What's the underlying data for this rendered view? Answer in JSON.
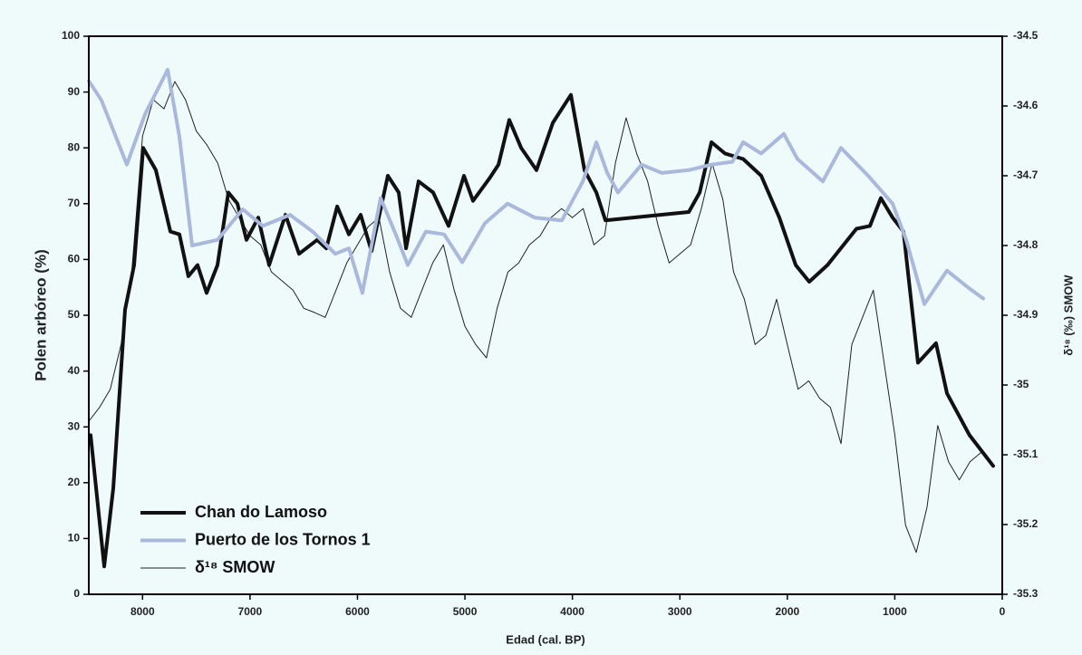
{
  "chart_data": {
    "type": "line",
    "xlabel": "Edad (cal. BP)",
    "ylabel": "Polen arbóreo (%)",
    "y2label": "δ¹⁸ (‰) SMOW",
    "xlim": [
      8500,
      0
    ],
    "xticks": [
      8000,
      7000,
      6000,
      5000,
      4000,
      3000,
      2000,
      1000,
      0
    ],
    "ylim": [
      0,
      100
    ],
    "yticks": [
      0,
      10,
      20,
      30,
      40,
      50,
      60,
      70,
      80,
      90,
      100
    ],
    "y2lim": [
      -35.3,
      -34.5
    ],
    "y2ticks": [
      -35.3,
      -35.2,
      -35.1,
      -35,
      -34.9,
      -34.8,
      -34.7,
      -34.6,
      -34.5
    ],
    "legend": "lower left",
    "series": [
      {
        "name": "Chan do Lamoso",
        "color": "#111111",
        "x": [
          8483,
          8357,
          8272,
          8163,
          8078,
          7994,
          7876,
          7741,
          7657,
          7573,
          7488,
          7404,
          7303,
          7201,
          7117,
          7033,
          6923,
          6822,
          6670,
          6544,
          6375,
          6290,
          6189,
          6080,
          5970,
          5869,
          5717,
          5616,
          5548,
          5431,
          5296,
          5152,
          5009,
          4925,
          4773,
          4688,
          4587,
          4477,
          4334,
          4182,
          4014,
          3887,
          3777,
          3693,
          2917,
          2816,
          2706,
          2580,
          2411,
          2243,
          2074,
          1922,
          1796,
          1627,
          1357,
          1231,
          1130,
          1020,
          919,
          784,
          616,
          514,
          304,
          84
        ],
        "values": [
          28.5,
          5,
          19,
          51,
          59,
          80,
          76,
          65,
          64.5,
          57,
          59,
          54,
          59,
          72,
          70,
          63.5,
          67.5,
          59,
          68,
          61,
          63.5,
          62,
          69.5,
          64.5,
          68,
          61.5,
          75,
          72,
          62,
          74,
          72,
          66,
          75,
          70.5,
          74.5,
          77,
          85,
          80,
          76,
          84.5,
          89.5,
          76,
          72,
          67,
          68.5,
          72,
          81,
          79,
          78,
          75,
          67.5,
          59,
          56,
          59,
          65.5,
          66,
          71,
          67.5,
          65,
          41.5,
          45,
          36,
          28.5,
          23
        ]
      },
      {
        "name": "Puerto de los Tornos 1",
        "color": "#aab8dc",
        "x": [
          8500,
          8382,
          8146,
          7977,
          7766,
          7657,
          7539,
          7303,
          7067,
          6881,
          6628,
          6417,
          6206,
          6080,
          5954,
          5785,
          5633,
          5532,
          5363,
          5194,
          5025,
          4814,
          4603,
          4350,
          4098,
          3903,
          3777,
          3676,
          3575,
          3356,
          3170,
          2917,
          2706,
          2512,
          2411,
          2243,
          2032,
          1906,
          1670,
          1501,
          1248,
          1020,
          894,
          725,
          514,
          320,
          177
        ],
        "values": [
          92,
          88.5,
          77,
          86,
          94,
          82,
          62.5,
          63.5,
          69,
          66,
          68,
          65,
          61,
          62,
          54,
          71,
          64,
          59,
          65,
          64.5,
          59.5,
          66.5,
          70,
          67.5,
          67,
          74,
          81,
          75.5,
          72,
          77,
          75.5,
          76,
          77,
          77.5,
          81,
          79,
          82.5,
          78,
          74,
          80,
          75,
          70,
          63.5,
          52,
          58,
          55,
          53
        ]
      },
      {
        "name": "δ¹⁸ SMOW",
        "color": "#222222",
        "axis": "y2",
        "x": [
          8500,
          8400,
          8300,
          8200,
          8100,
          8000,
          7900,
          7800,
          7700,
          7600,
          7500,
          7400,
          7300,
          7200,
          7100,
          7000,
          6900,
          6800,
          6700,
          6600,
          6500,
          6400,
          6300,
          6200,
          6100,
          6000,
          5900,
          5800,
          5700,
          5600,
          5500,
          5400,
          5300,
          5200,
          5100,
          5000,
          4900,
          4800,
          4700,
          4600,
          4500,
          4400,
          4300,
          4200,
          4100,
          4000,
          3900,
          3800,
          3700,
          3600,
          3500,
          3400,
          3300,
          3200,
          3100,
          3000,
          2900,
          2800,
          2700,
          2600,
          2500,
          2400,
          2300,
          2200,
          2100,
          2000,
          1900,
          1800,
          1700,
          1600,
          1500,
          1400,
          1300,
          1200,
          1100,
          1000,
          900,
          800,
          700,
          600,
          500,
          400,
          300,
          200
        ],
        "values": [
          -35.052,
          -35.032,
          -35.006,
          -34.942,
          -34.838,
          -34.643,
          -34.591,
          -34.604,
          -34.565,
          -34.591,
          -34.636,
          -34.656,
          -34.682,
          -34.734,
          -34.76,
          -34.786,
          -34.799,
          -34.838,
          -34.851,
          -34.864,
          -34.89,
          -34.896,
          -34.903,
          -34.864,
          -34.825,
          -34.799,
          -34.773,
          -34.76,
          -34.838,
          -34.89,
          -34.903,
          -34.864,
          -34.825,
          -34.799,
          -34.864,
          -34.916,
          -34.942,
          -34.961,
          -34.89,
          -34.838,
          -34.825,
          -34.799,
          -34.786,
          -34.76,
          -34.747,
          -34.76,
          -34.747,
          -34.799,
          -34.786,
          -34.682,
          -34.617,
          -34.669,
          -34.708,
          -34.773,
          -34.825,
          -34.812,
          -34.799,
          -34.747,
          -34.682,
          -34.734,
          -34.838,
          -34.877,
          -34.942,
          -34.929,
          -34.877,
          -34.942,
          -35.006,
          -34.994,
          -35.019,
          -35.032,
          -35.084,
          -34.942,
          -34.903,
          -34.864,
          -34.968,
          -35.071,
          -35.201,
          -35.24,
          -35.175,
          -35.058,
          -35.11,
          -35.136,
          -35.11,
          -35.097
        ]
      }
    ]
  }
}
